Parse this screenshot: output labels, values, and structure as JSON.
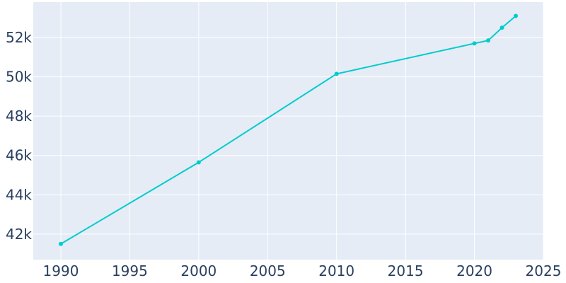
{
  "chart_data": {
    "type": "line",
    "title": "",
    "xlabel": "",
    "ylabel": "",
    "grid": true,
    "xlim": [
      1988,
      2025
    ],
    "ylim": [
      40700,
      53800
    ],
    "x_ticks": [
      1990,
      1995,
      2000,
      2005,
      2010,
      2015,
      2020,
      2025
    ],
    "x_tick_labels": [
      "1990",
      "1995",
      "2000",
      "2005",
      "2010",
      "2015",
      "2020",
      "2025"
    ],
    "y_ticks": [
      42000,
      44000,
      46000,
      48000,
      50000,
      52000
    ],
    "y_tick_labels": [
      "42k",
      "44k",
      "46k",
      "48k",
      "50k",
      "52k"
    ],
    "series": [
      {
        "x": [
          1990,
          2000,
          2010,
          2020,
          2021,
          2022,
          2023
        ],
        "y": [
          41500,
          45650,
          50150,
          51700,
          51850,
          52500,
          53100
        ]
      }
    ],
    "colors": {
      "line": "#00cccc",
      "plot_background": "#e5ecf6",
      "grid": "#ffffff",
      "tick_text": "#2a3f5f"
    }
  }
}
